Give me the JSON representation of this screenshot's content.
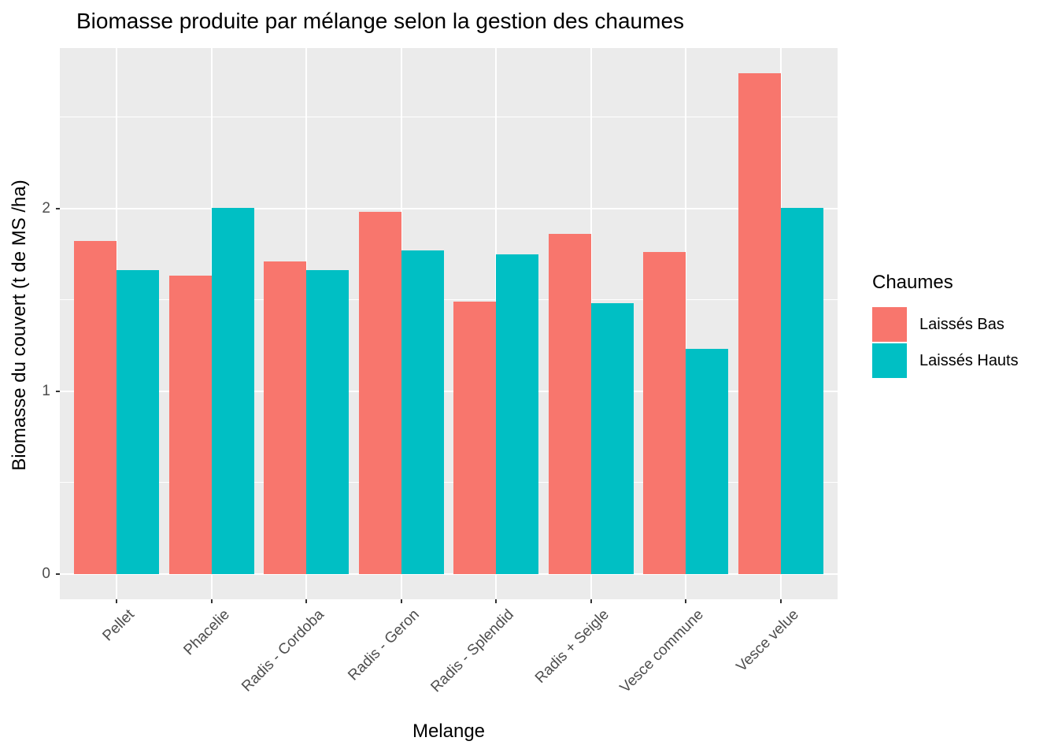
{
  "chart_data": {
    "type": "bar",
    "title": "Biomasse produite par mélange selon la gestion des chaumes",
    "xlabel": "Melange",
    "ylabel": "Biomasse du couvert (t de MS /ha)",
    "legend_title": "Chaumes",
    "legend_position": "right",
    "grid": true,
    "categories": [
      "Pellet",
      "Phacelie",
      "Radis - Cordoba",
      "Radis - Geron",
      "Radis - Splendid",
      "Radis + Seigle",
      "Vesce commune",
      "Vesce velue"
    ],
    "series": [
      {
        "name": "Laissés Bas",
        "color": "#F8766D",
        "values": [
          1.82,
          1.63,
          1.71,
          1.98,
          1.49,
          1.86,
          1.76,
          2.74
        ]
      },
      {
        "name": "Laissés Hauts",
        "color": "#00BFC4",
        "values": [
          1.66,
          2.0,
          1.66,
          1.77,
          1.75,
          1.48,
          1.23,
          2.0
        ]
      }
    ],
    "y_ticks": [
      0,
      1,
      2
    ],
    "y_minor_ticks": [
      0.5,
      1.5,
      2.5
    ],
    "ylim": [
      -0.14,
      2.88
    ]
  },
  "colors": {
    "panel_background": "#EBEBEB",
    "gridline": "#FFFFFF",
    "tick_text": "#4D4D4D",
    "tick_mark": "#333333",
    "text": "#000000"
  }
}
